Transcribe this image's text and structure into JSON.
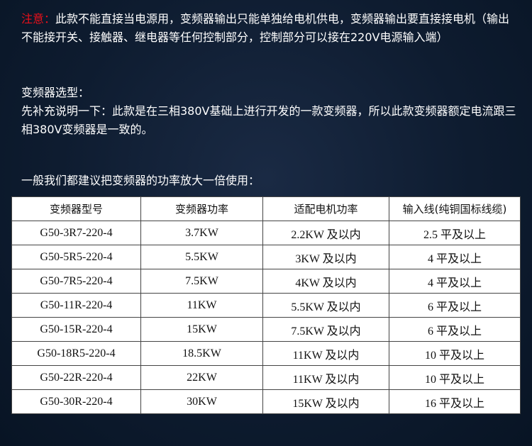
{
  "notice": {
    "label": "注意：",
    "text": "此款不能直接当电源用，变频器输出只能单独给电机供电，变频器输出要直接接电机（输出不能接开关、接触器、继电器等任何控制部分，控制部分可以接在220V电源输入端）"
  },
  "selection_title": "变频器选型：",
  "intro": "先补充说明一下：此款是在三相380V基础上进行开发的一款变频器，所以此款变频器额定电流跟三相380V变频器是一致的。",
  "recommend": "一般我们都建议把变频器的功率放大一倍使用：",
  "table": {
    "headers": [
      "变频器型号",
      "变频器功率",
      "适配电机功率",
      "输入线(纯铜国标线缆)"
    ],
    "rows": [
      [
        "G50-3R7-220-4",
        "3.7KW",
        "2.2KW 及以内",
        "2.5 平及以上"
      ],
      [
        "G50-5R5-220-4",
        "5.5KW",
        "3KW 及以内",
        "4 平及以上"
      ],
      [
        "G50-7R5-220-4",
        "7.5KW",
        "4KW 及以内",
        "4 平及以上"
      ],
      [
        "G50-11R-220-4",
        "11KW",
        "5.5KW 及以内",
        "6 平及以上"
      ],
      [
        "G50-15R-220-4",
        "15KW",
        "7.5KW 及以内",
        "6 平及以上"
      ],
      [
        "G50-18R5-220-4",
        "18.5KW",
        "11KW 及以内",
        "10 平及以上"
      ],
      [
        "G50-22R-220-4",
        "22KW",
        "11KW 及以内",
        "10 平及以上"
      ],
      [
        "G50-30R-220-4",
        "30KW",
        "15KW 及以内",
        "16 平及以上"
      ]
    ]
  },
  "colors": {
    "notice_label": "#e8101a",
    "background": "#0e1c30"
  }
}
